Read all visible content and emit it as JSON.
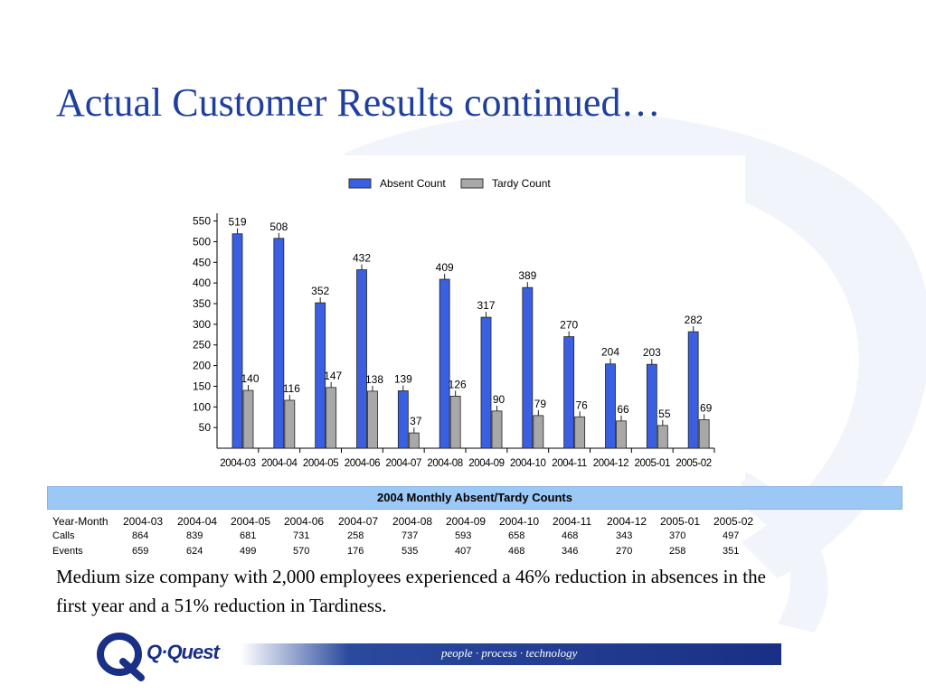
{
  "slide": {
    "title": "Actual Customer Results continued…",
    "body_text": "Medium size company with 2,000 employees experienced a 46% reduction in absences in the first year and a 51% reduction in Tardiness."
  },
  "colors": {
    "title": "#1f3fa0",
    "absent": "#3a5fe0",
    "tardy": "#a8a8a8",
    "table_header": "#9cc8f6",
    "footer_bar": "#1a2f86"
  },
  "chart_data": {
    "type": "bar",
    "categories": [
      "2004-03",
      "2004-04",
      "2004-05",
      "2004-06",
      "2004-07",
      "2004-08",
      "2004-09",
      "2004-10",
      "2004-11",
      "2004-12",
      "2005-01",
      "2005-02"
    ],
    "series": [
      {
        "name": "Absent Count",
        "color": "#3a5fe0",
        "values": [
          519,
          508,
          352,
          432,
          139,
          409,
          317,
          389,
          270,
          204,
          203,
          282
        ]
      },
      {
        "name": "Tardy Count",
        "color": "#a8a8a8",
        "values": [
          140,
          116,
          147,
          138,
          37,
          126,
          90,
          79,
          76,
          66,
          55,
          69
        ]
      }
    ],
    "data_labels": {
      "Absent Count": [
        "519",
        "508",
        "352",
        "432",
        "139",
        "409",
        "317",
        "389",
        "270",
        "204",
        "203",
        "282"
      ],
      "Tardy Count": [
        "140",
        "116",
        "147",
        "138",
        "37",
        "126",
        "90",
        "79",
        "76",
        "66",
        "55",
        "69"
      ]
    },
    "yticks": [
      50,
      100,
      150,
      200,
      250,
      300,
      350,
      400,
      450,
      500,
      550
    ],
    "ylim": [
      0,
      560
    ],
    "legend_position": "top",
    "grid": false
  },
  "table": {
    "title": "2004 Monthly Absent/Tardy Counts",
    "header_label": "Year-Month",
    "months": [
      "2004-03",
      "2004-04",
      "2004-05",
      "2004-06",
      "2004-07",
      "2004-08",
      "2004-09",
      "2004-10",
      "2004-11",
      "2004-12",
      "2005-01",
      "2005-02"
    ],
    "rows": [
      {
        "label": "Calls",
        "values": [
          "864",
          "839",
          "681",
          "731",
          "258",
          "737",
          "593",
          "658",
          "468",
          "343",
          "370",
          "497"
        ]
      },
      {
        "label": "Events",
        "values": [
          "659",
          "624",
          "499",
          "570",
          "176",
          "535",
          "407",
          "468",
          "346",
          "270",
          "258",
          "351"
        ]
      }
    ]
  },
  "footer": {
    "logo_text": "Q·Quest",
    "logo_mark": "Q",
    "tagline": "people · process · technology"
  }
}
